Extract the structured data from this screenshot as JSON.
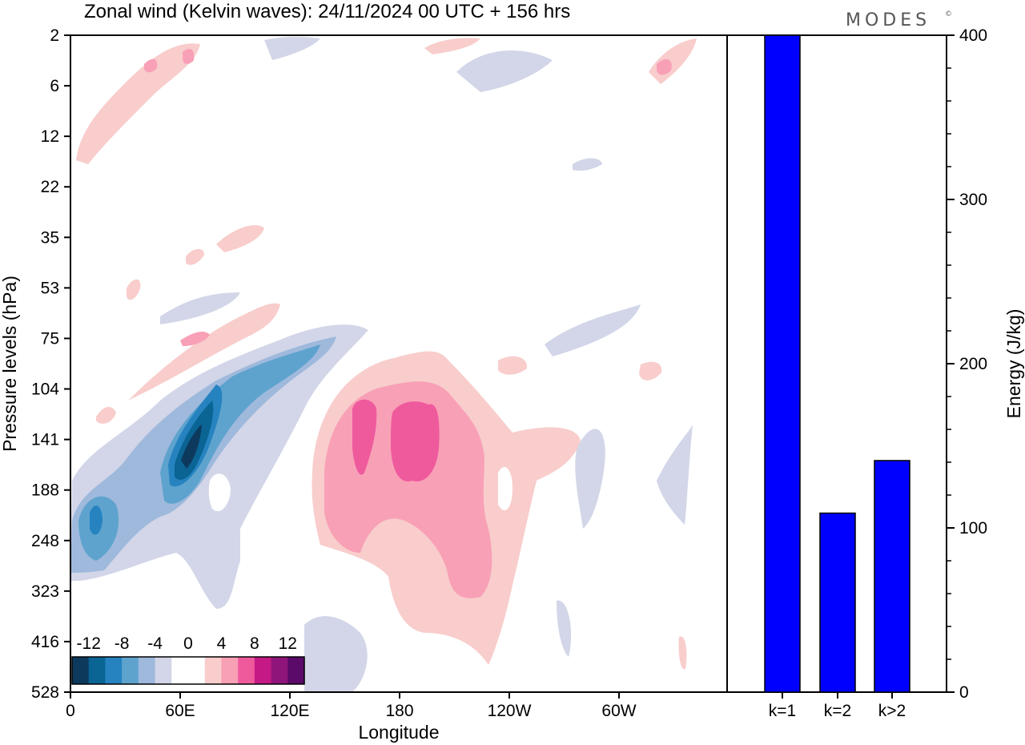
{
  "title": "Zonal wind (Kelvin waves):  24/11/2024  00 UTC  + 156 hrs",
  "brand": "MODES",
  "brand_mark": "©",
  "chart_data": [
    {
      "type": "heatmap",
      "title": "Zonal wind (Kelvin waves):  24/11/2024  00 UTC  + 156 hrs",
      "xlabel": "Longitude",
      "ylabel": "Pressure levels (hPa)",
      "x_ticks": [
        "0",
        "60E",
        "120E",
        "180",
        "120W",
        "60W"
      ],
      "y_ticks": [
        "2",
        "6",
        "12",
        "22",
        "35",
        "53",
        "75",
        "104",
        "141",
        "188",
        "248",
        "323",
        "416",
        "528"
      ],
      "y_scale": "log-pressure (inverted)",
      "colorbar": {
        "labels": [
          "-12",
          "-8",
          "-4",
          "0",
          "4",
          "8",
          "12"
        ],
        "colors": [
          "#0d3a5c",
          "#0a6494",
          "#2683c0",
          "#5ea3ce",
          "#9fb9dc",
          "#d2d6e8",
          "#ffffff",
          "#ffffff",
          "#f8cdcc",
          "#f8a0b6",
          "#ef5a9d",
          "#c51a86",
          "#90157a",
          "#5c0a6a"
        ]
      },
      "features": [
        {
          "sign": "negative",
          "desc": "tilted easterly band",
          "max_level": -12
        },
        {
          "sign": "positive",
          "desc": "westerly region near 180",
          "max_level": 8
        }
      ]
    },
    {
      "type": "bar",
      "categories": [
        "k=1",
        "k=2",
        "k>2"
      ],
      "values": [
        400,
        109,
        141
      ],
      "ylabel": "Energy (J/kg)",
      "ylim": [
        0,
        400
      ],
      "y_ticks": [
        "0",
        "100",
        "200",
        "300",
        "400"
      ],
      "bar_color": "#0000ff"
    }
  ]
}
